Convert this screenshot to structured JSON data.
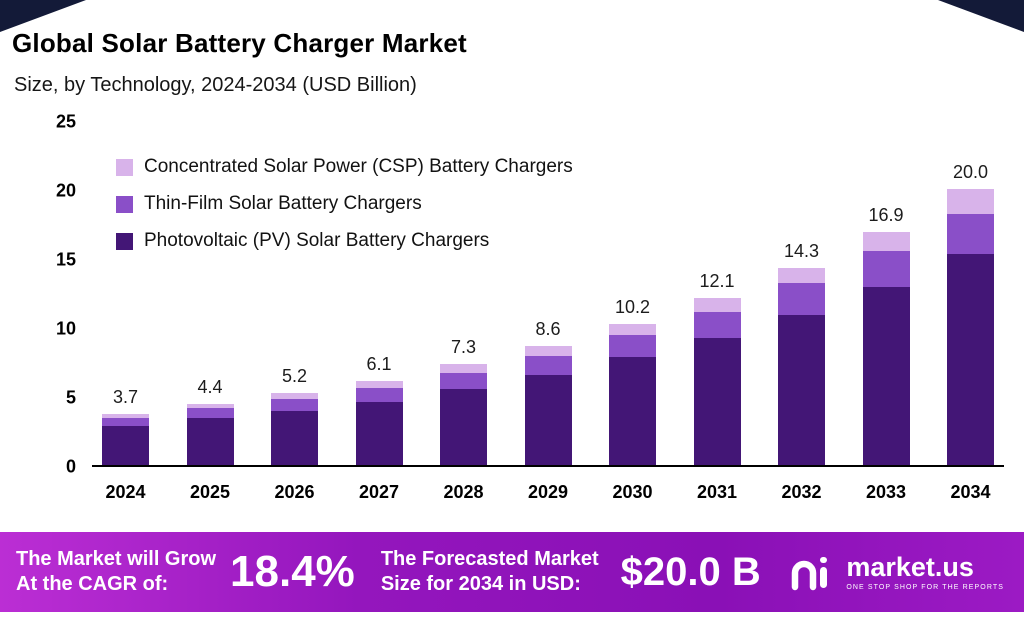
{
  "header": {
    "title": "Global Solar Battery Charger Market",
    "subtitle": "Size, by Technology, 2024-2034 (USD Billion)"
  },
  "chart_data": {
    "type": "bar",
    "stacked": true,
    "title": "Global Solar Battery Charger Market",
    "subtitle": "Size, by Technology, 2024-2034 (USD Billion)",
    "xlabel": "",
    "ylabel": "USD Billion",
    "ylim": [
      0,
      25
    ],
    "yticks": [
      0,
      5,
      10,
      15,
      20,
      25
    ],
    "grid": false,
    "legend_position": "top-left",
    "categories": [
      "2024",
      "2025",
      "2026",
      "2027",
      "2028",
      "2029",
      "2030",
      "2031",
      "2032",
      "2033",
      "2034"
    ],
    "series": [
      {
        "name": "Photovoltaic (PV) Solar Battery Chargers",
        "color": "#431676",
        "values": [
          2.8,
          3.4,
          3.9,
          4.6,
          5.5,
          6.5,
          7.8,
          9.2,
          10.9,
          12.9,
          15.3
        ]
      },
      {
        "name": "Thin-Film Solar Battery Chargers",
        "color": "#8a4fc8",
        "values": [
          0.6,
          0.7,
          0.9,
          1.0,
          1.2,
          1.4,
          1.6,
          1.9,
          2.3,
          2.6,
          2.9
        ]
      },
      {
        "name": "Concentrated Solar Power (CSP) Battery Chargers",
        "color": "#d8b3ea",
        "values": [
          0.3,
          0.3,
          0.4,
          0.5,
          0.6,
          0.7,
          0.8,
          1.0,
          1.1,
          1.4,
          1.8
        ]
      }
    ],
    "totals": [
      3.7,
      4.4,
      5.2,
      6.1,
      7.3,
      8.6,
      10.2,
      12.1,
      14.3,
      16.9,
      20.0
    ]
  },
  "footer": {
    "cagr_label_line1": "The Market will Grow",
    "cagr_label_line2": "At the CAGR of:",
    "cagr_value": "18.4%",
    "forecast_label_line1": "The Forecasted Market",
    "forecast_label_line2": "Size for 2034 in USD:",
    "forecast_value": "$20.0 B",
    "brand": "market.us",
    "brand_tagline": "ONE STOP SHOP FOR THE REPORTS"
  }
}
